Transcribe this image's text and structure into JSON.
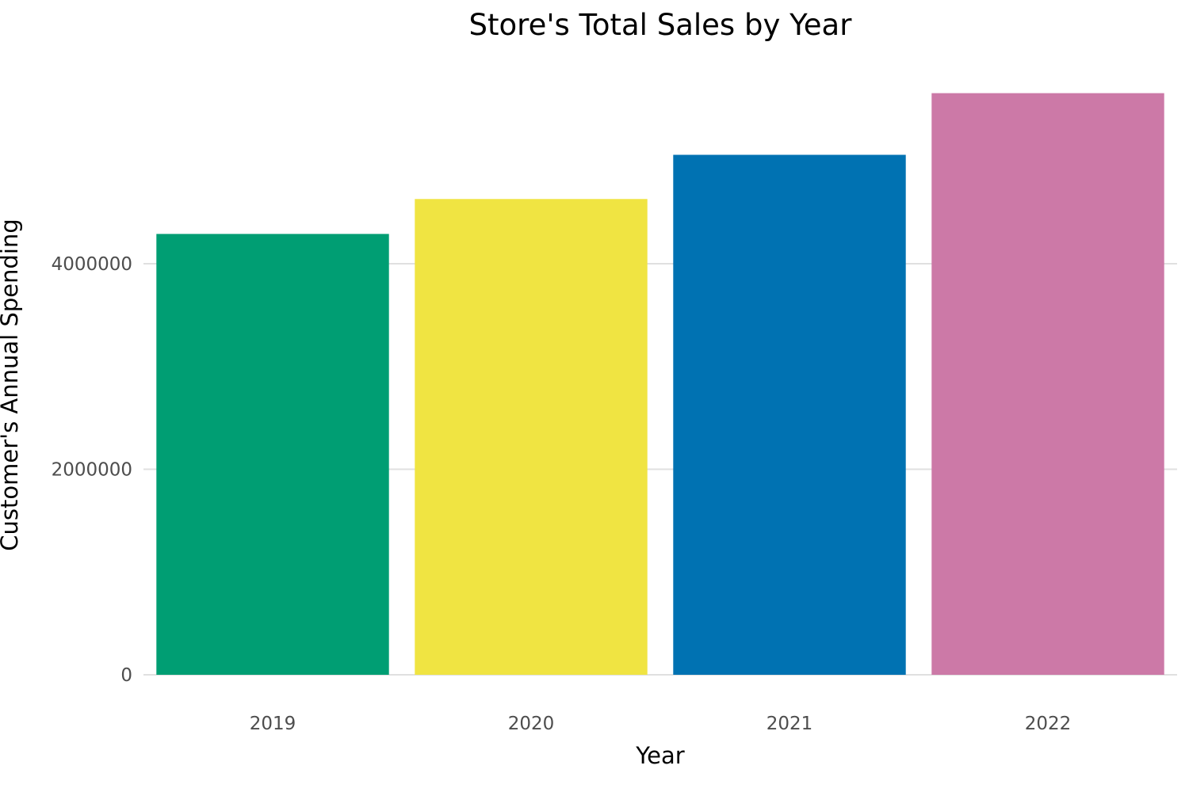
{
  "chart_data": {
    "type": "bar",
    "title": "Store's Total Sales by Year",
    "xlabel": "Year",
    "ylabel": "Customer's Annual Spending",
    "categories": [
      "2019",
      "2020",
      "2021",
      "2022"
    ],
    "values": [
      4290000,
      4630000,
      5060000,
      5660000
    ],
    "colors": [
      "#009E73",
      "#F0E442",
      "#0072B2",
      "#CC79A7"
    ],
    "ylim": [
      0,
      5950000
    ],
    "yticks": [
      0,
      2000000,
      4000000
    ],
    "ytick_labels": [
      "0",
      "2000000",
      "4000000"
    ],
    "grid": true,
    "legend": "none"
  }
}
